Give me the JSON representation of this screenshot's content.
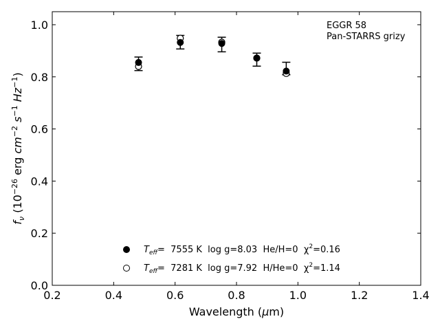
{
  "chart_data": {
    "type": "scatter",
    "xlabel": "Wavelength (μm)",
    "ylabel": "f_ν (10^-26 erg cm^-2 s^-1 Hz^-1)",
    "xlim": [
      0.2,
      1.4
    ],
    "ylim": [
      0.0,
      1.05
    ],
    "xticks": [
      "0.2",
      "0.4",
      "0.6",
      "0.8",
      "1.0",
      "1.2",
      "1.4"
    ],
    "yticks": [
      "0.0",
      "0.2",
      "0.4",
      "0.6",
      "0.8",
      "1.0"
    ],
    "grid": false,
    "legend_position": "bottom-center",
    "annotation": {
      "line1": "EGGR 58",
      "line2": "Pan-STARRS grizy"
    },
    "observed": {
      "x": [
        0.481,
        0.617,
        0.752,
        0.866,
        0.962
      ],
      "y": [
        0.85,
        0.933,
        0.924,
        0.866,
        0.832
      ],
      "yerr": [
        0.026,
        0.026,
        0.028,
        0.025,
        0.024
      ]
    },
    "series": [
      {
        "name": "Teff= 7555 K log g=8.03 He/H=0 χ2=0.16",
        "marker": "filled-circle",
        "x": [
          0.481,
          0.617,
          0.752,
          0.866,
          0.962
        ],
        "y": [
          0.855,
          0.932,
          0.928,
          0.872,
          0.822
        ]
      },
      {
        "name": "Teff= 7281 K log g=7.92 H/He=0 χ2=1.14",
        "marker": "open-circle",
        "x": [
          0.481,
          0.617,
          0.752,
          0.866,
          0.962
        ],
        "y": [
          0.84,
          0.948,
          0.933,
          0.872,
          0.813
        ]
      }
    ],
    "legend": [
      {
        "teff": "T",
        "teff_sub": "eff",
        "rest1": "=  7555 K  log g=8.03  He/H=0  χ",
        "sup": "2",
        "rest2": "=0.16"
      },
      {
        "teff": "T",
        "teff_sub": "eff",
        "rest1": "=  7281 K  log g=7.92  H/He=0  χ",
        "sup": "2",
        "rest2": "=1.14"
      }
    ]
  }
}
